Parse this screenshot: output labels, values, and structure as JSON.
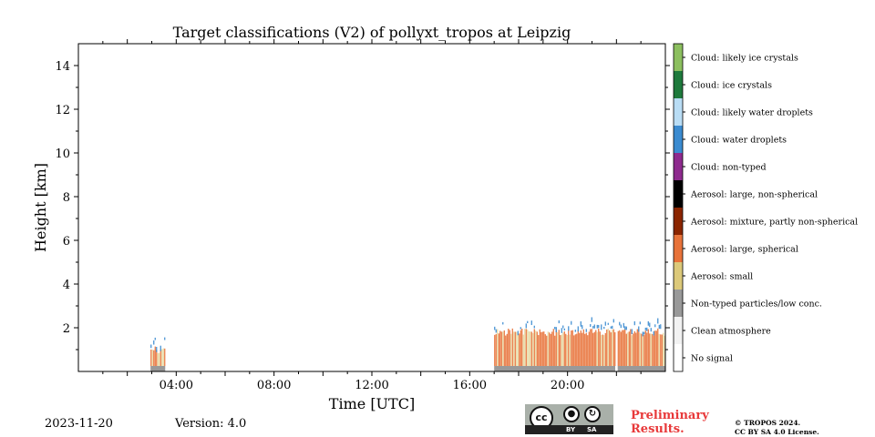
{
  "chart_data": {
    "type": "heatmap",
    "title": "Target classifications (V2) of pollyxt_tropos at Leipzig",
    "xlabel": "Time [UTC]",
    "ylabel": "Height [km]",
    "x_range_hours": [
      0,
      24
    ],
    "x_ticks": [
      {
        "hour": 4,
        "label": "04:00"
      },
      {
        "hour": 8,
        "label": "08:00"
      },
      {
        "hour": 12,
        "label": "12:00"
      },
      {
        "hour": 16,
        "label": "16:00"
      },
      {
        "hour": 20,
        "label": "20:00"
      }
    ],
    "ylim": [
      0,
      15
    ],
    "y_ticks": [
      2,
      4,
      6,
      8,
      10,
      12,
      14
    ],
    "grid": false,
    "colorbar": [
      {
        "code": 0,
        "label": "No signal",
        "color": "#ffffff"
      },
      {
        "code": 1,
        "label": "Clean atmosphere",
        "color": "#f2f2f2"
      },
      {
        "code": 2,
        "label": "Non-typed particles/low conc.",
        "color": "#999999"
      },
      {
        "code": 3,
        "label": "Aerosol: small",
        "color": "#dcc97a"
      },
      {
        "code": 4,
        "label": "Aerosol: large, spherical",
        "color": "#e8733a"
      },
      {
        "code": 5,
        "label": "Aerosol: mixture, partly non-spherical",
        "color": "#8b2500"
      },
      {
        "code": 6,
        "label": "Aerosol: large, non-spherical",
        "color": "#000000"
      },
      {
        "code": 7,
        "label": "Cloud: non-typed",
        "color": "#8e2a8e"
      },
      {
        "code": 8,
        "label": "Cloud: water droplets",
        "color": "#3b8bd0"
      },
      {
        "code": 9,
        "label": "Cloud: likely water droplets",
        "color": "#b9ddf5"
      },
      {
        "code": 10,
        "label": "Cloud: ice crystals",
        "color": "#1e7a3c"
      },
      {
        "code": 11,
        "label": "Cloud: likely ice crystals",
        "color": "#8cbf5f"
      }
    ],
    "segments": [
      {
        "start_hour": 2.95,
        "end_hour": 3.55,
        "top_km": 1.0,
        "base_class": "Non-typed particles/low conc.",
        "main_class": "Aerosol: large, spherical",
        "cloud_class": "Cloud: water droplets"
      },
      {
        "start_hour": 17.0,
        "end_hour": 21.95,
        "top_km": 1.8,
        "base_class": "Non-typed particles/low conc.",
        "main_class": "Aerosol: large, spherical",
        "cloud_class": "Cloud: water droplets"
      },
      {
        "start_hour": 22.05,
        "end_hour": 24.0,
        "top_km": 1.8,
        "base_class": "Non-typed particles/low conc.",
        "main_class": "Aerosol: large, spherical",
        "cloud_class": "Cloud: water droplets"
      }
    ]
  },
  "footer": {
    "date": "2023-11-20",
    "version": "Version: 4.0",
    "badge": {
      "cc": "cc",
      "by": "BY",
      "sa": "SA"
    },
    "preliminary_line1": "Preliminary",
    "preliminary_line2": "Results.",
    "copyright_line1": "© TROPOS 2024.",
    "copyright_line2": "CC BY SA 4.0 License."
  }
}
